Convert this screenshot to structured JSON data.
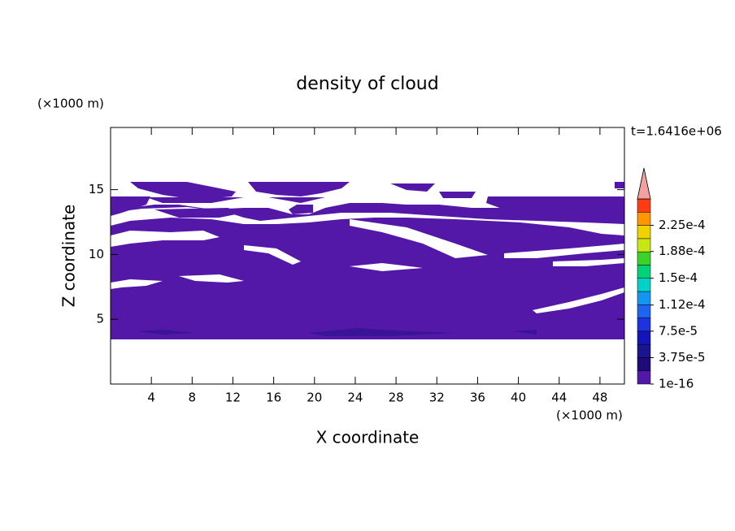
{
  "chart_data": {
    "type": "contour",
    "title": "density of cloud",
    "xlabel": "X coordinate",
    "ylabel": "Z coordinate",
    "xunit": "(×1000 m)",
    "yunit": "(×1000 m)",
    "time_label": "t=1.6416e+06",
    "xlim": [
      0,
      50.4
    ],
    "xticks": [
      4,
      8,
      12,
      16,
      20,
      24,
      28,
      32,
      36,
      40,
      44,
      48
    ],
    "ylim": [
      0,
      19.8
    ],
    "yticks": [
      5,
      10,
      15
    ],
    "fill_color": "#5418a8",
    "colorbar": {
      "clim": [
        0,
        0.0002625
      ],
      "colors": [
        "#5418a8",
        "#200a78",
        "#1a1490",
        "#1414b8",
        "#1e32e0",
        "#1e64f0",
        "#1496f0",
        "#00d2c8",
        "#00d27a",
        "#3cd228",
        "#c8e614",
        "#f0d200",
        "#ff9600",
        "#ff3c14"
      ],
      "extend_color": "#f4a0a0",
      "ticks": [
        {
          "value": 1e-16,
          "label": "1e-16"
        },
        {
          "value": 3.75e-05,
          "label": "3.75e-5"
        },
        {
          "value": 7.5e-05,
          "label": "7.5e-5"
        },
        {
          "value": 0.000112,
          "label": "1.12e-4"
        },
        {
          "value": 0.00015,
          "label": "1.5e-4"
        },
        {
          "value": 0.000188,
          "label": "1.88e-4"
        },
        {
          "value": 0.000225,
          "label": "2.25e-4"
        }
      ]
    }
  }
}
